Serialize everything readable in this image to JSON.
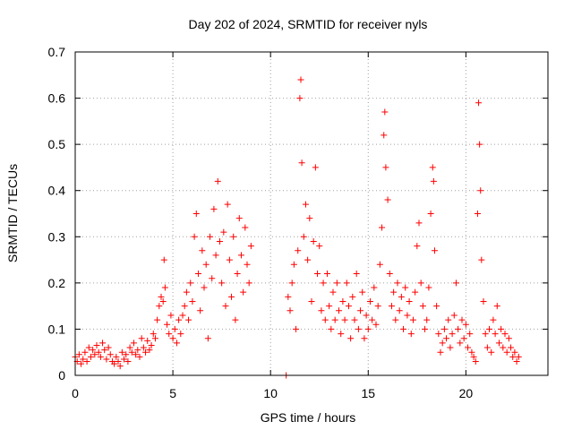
{
  "chart_data": {
    "type": "scatter",
    "title": "Day 202 of 2024, SRMTID for receiver nyls",
    "xlabel": "GPS time / hours",
    "ylabel": "SRMTID / TECUs",
    "xlim": [
      0,
      24.2
    ],
    "ylim": [
      0,
      0.7
    ],
    "xticks": [
      0,
      5,
      10,
      15,
      20
    ],
    "xtick_labels": [
      "0",
      "5",
      "10",
      "15",
      "20"
    ],
    "yticks": [
      0,
      0.1,
      0.2,
      0.3,
      0.4,
      0.5,
      0.6,
      0.7
    ],
    "ytick_labels": [
      "0",
      "0.1",
      "0.2",
      "0.3",
      "0.4",
      "0.5",
      "0.6",
      "0.7"
    ],
    "grid": true,
    "marker": "plus",
    "color": "#ff0000",
    "series": [
      {
        "name": "SRMTID",
        "points": [
          [
            0.0,
            0.04
          ],
          [
            0.1,
            0.03
          ],
          [
            0.2,
            0.045
          ],
          [
            0.3,
            0.025
          ],
          [
            0.4,
            0.035
          ],
          [
            0.5,
            0.05
          ],
          [
            0.6,
            0.03
          ],
          [
            0.7,
            0.06
          ],
          [
            0.8,
            0.04
          ],
          [
            0.9,
            0.055
          ],
          [
            1.0,
            0.045
          ],
          [
            1.1,
            0.065
          ],
          [
            1.2,
            0.05
          ],
          [
            1.3,
            0.04
          ],
          [
            1.4,
            0.07
          ],
          [
            1.5,
            0.055
          ],
          [
            1.6,
            0.035
          ],
          [
            1.7,
            0.06
          ],
          [
            1.8,
            0.045
          ],
          [
            1.9,
            0.03
          ],
          [
            2.0,
            0.025
          ],
          [
            2.1,
            0.04
          ],
          [
            2.2,
            0.03
          ],
          [
            2.3,
            0.02
          ],
          [
            2.4,
            0.05
          ],
          [
            2.5,
            0.035
          ],
          [
            2.6,
            0.045
          ],
          [
            2.7,
            0.03
          ],
          [
            2.8,
            0.06
          ],
          [
            2.9,
            0.05
          ],
          [
            3.0,
            0.07
          ],
          [
            3.1,
            0.045
          ],
          [
            3.2,
            0.055
          ],
          [
            3.3,
            0.04
          ],
          [
            3.4,
            0.08
          ],
          [
            3.5,
            0.06
          ],
          [
            3.6,
            0.05
          ],
          [
            3.7,
            0.075
          ],
          [
            3.8,
            0.055
          ],
          [
            3.9,
            0.065
          ],
          [
            4.0,
            0.09
          ],
          [
            4.1,
            0.08
          ],
          [
            4.2,
            0.12
          ],
          [
            4.3,
            0.15
          ],
          [
            4.4,
            0.17
          ],
          [
            4.5,
            0.16
          ],
          [
            4.55,
            0.25
          ],
          [
            4.6,
            0.19
          ],
          [
            4.7,
            0.11
          ],
          [
            4.8,
            0.09
          ],
          [
            4.9,
            0.13
          ],
          [
            5.0,
            0.08
          ],
          [
            5.1,
            0.1
          ],
          [
            5.2,
            0.07
          ],
          [
            5.3,
            0.12
          ],
          [
            5.4,
            0.09
          ],
          [
            5.5,
            0.13
          ],
          [
            5.6,
            0.15
          ],
          [
            5.7,
            0.18
          ],
          [
            5.8,
            0.12
          ],
          [
            5.9,
            0.2
          ],
          [
            6.0,
            0.16
          ],
          [
            6.1,
            0.3
          ],
          [
            6.2,
            0.35
          ],
          [
            6.3,
            0.22
          ],
          [
            6.4,
            0.14
          ],
          [
            6.5,
            0.27
          ],
          [
            6.6,
            0.19
          ],
          [
            6.7,
            0.24
          ],
          [
            6.8,
            0.08
          ],
          [
            6.9,
            0.3
          ],
          [
            7.0,
            0.21
          ],
          [
            7.1,
            0.36
          ],
          [
            7.2,
            0.26
          ],
          [
            7.3,
            0.42
          ],
          [
            7.4,
            0.29
          ],
          [
            7.5,
            0.2
          ],
          [
            7.6,
            0.31
          ],
          [
            7.7,
            0.15
          ],
          [
            7.8,
            0.37
          ],
          [
            7.9,
            0.25
          ],
          [
            8.0,
            0.17
          ],
          [
            8.1,
            0.3
          ],
          [
            8.2,
            0.12
          ],
          [
            8.3,
            0.22
          ],
          [
            8.4,
            0.34
          ],
          [
            8.5,
            0.26
          ],
          [
            8.6,
            0.18
          ],
          [
            8.7,
            0.32
          ],
          [
            8.8,
            0.24
          ],
          [
            8.9,
            0.2
          ],
          [
            9.0,
            0.28
          ],
          [
            10.8,
            0.0
          ],
          [
            10.9,
            0.17
          ],
          [
            11.0,
            0.14
          ],
          [
            11.1,
            0.2
          ],
          [
            11.2,
            0.24
          ],
          [
            11.3,
            0.1
          ],
          [
            11.4,
            0.27
          ],
          [
            11.5,
            0.6
          ],
          [
            11.55,
            0.64
          ],
          [
            11.6,
            0.46
          ],
          [
            11.7,
            0.3
          ],
          [
            11.8,
            0.37
          ],
          [
            11.9,
            0.25
          ],
          [
            12.0,
            0.34
          ],
          [
            12.1,
            0.16
          ],
          [
            12.2,
            0.29
          ],
          [
            12.3,
            0.45
          ],
          [
            12.4,
            0.22
          ],
          [
            12.5,
            0.28
          ],
          [
            12.6,
            0.14
          ],
          [
            12.7,
            0.2
          ],
          [
            12.8,
            0.12
          ],
          [
            12.9,
            0.22
          ],
          [
            13.0,
            0.15
          ],
          [
            13.1,
            0.1
          ],
          [
            13.2,
            0.18
          ],
          [
            13.3,
            0.12
          ],
          [
            13.4,
            0.2
          ],
          [
            13.5,
            0.14
          ],
          [
            13.6,
            0.09
          ],
          [
            13.7,
            0.16
          ],
          [
            13.8,
            0.12
          ],
          [
            13.9,
            0.2
          ],
          [
            14.0,
            0.15
          ],
          [
            14.1,
            0.08
          ],
          [
            14.2,
            0.17
          ],
          [
            14.3,
            0.12
          ],
          [
            14.4,
            0.22
          ],
          [
            14.5,
            0.1
          ],
          [
            14.6,
            0.14
          ],
          [
            14.7,
            0.18
          ],
          [
            14.8,
            0.08
          ],
          [
            14.9,
            0.13
          ],
          [
            15.0,
            0.1
          ],
          [
            15.1,
            0.16
          ],
          [
            15.2,
            0.12
          ],
          [
            15.3,
            0.19
          ],
          [
            15.4,
            0.11
          ],
          [
            15.5,
            0.15
          ],
          [
            15.6,
            0.24
          ],
          [
            15.7,
            0.32
          ],
          [
            15.8,
            0.52
          ],
          [
            15.85,
            0.57
          ],
          [
            15.9,
            0.45
          ],
          [
            16.0,
            0.38
          ],
          [
            16.1,
            0.22
          ],
          [
            16.2,
            0.15
          ],
          [
            16.3,
            0.18
          ],
          [
            16.4,
            0.12
          ],
          [
            16.5,
            0.2
          ],
          [
            16.6,
            0.14
          ],
          [
            16.7,
            0.17
          ],
          [
            16.8,
            0.1
          ],
          [
            16.9,
            0.19
          ],
          [
            17.0,
            0.13
          ],
          [
            17.1,
            0.16
          ],
          [
            17.2,
            0.09
          ],
          [
            17.3,
            0.12
          ],
          [
            17.4,
            0.18
          ],
          [
            17.5,
            0.28
          ],
          [
            17.6,
            0.33
          ],
          [
            17.7,
            0.2
          ],
          [
            17.8,
            0.15
          ],
          [
            17.9,
            0.1
          ],
          [
            18.0,
            0.12
          ],
          [
            18.1,
            0.19
          ],
          [
            18.2,
            0.35
          ],
          [
            18.3,
            0.45
          ],
          [
            18.35,
            0.42
          ],
          [
            18.4,
            0.27
          ],
          [
            18.5,
            0.15
          ],
          [
            18.6,
            0.09
          ],
          [
            18.7,
            0.05
          ],
          [
            18.8,
            0.07
          ],
          [
            18.9,
            0.1
          ],
          [
            19.0,
            0.08
          ],
          [
            19.1,
            0.12
          ],
          [
            19.2,
            0.06
          ],
          [
            19.3,
            0.09
          ],
          [
            19.4,
            0.13
          ],
          [
            19.5,
            0.2
          ],
          [
            19.6,
            0.1
          ],
          [
            19.7,
            0.07
          ],
          [
            19.8,
            0.12
          ],
          [
            19.9,
            0.08
          ],
          [
            20.0,
            0.11
          ],
          [
            20.1,
            0.06
          ],
          [
            20.2,
            0.09
          ],
          [
            20.3,
            0.05
          ],
          [
            20.4,
            0.04
          ],
          [
            20.5,
            0.03
          ],
          [
            20.6,
            0.35
          ],
          [
            20.65,
            0.59
          ],
          [
            20.7,
            0.5
          ],
          [
            20.75,
            0.4
          ],
          [
            20.8,
            0.25
          ],
          [
            20.9,
            0.16
          ],
          [
            21.0,
            0.09
          ],
          [
            21.1,
            0.06
          ],
          [
            21.2,
            0.1
          ],
          [
            21.3,
            0.05
          ],
          [
            21.4,
            0.12
          ],
          [
            21.5,
            0.09
          ],
          [
            21.6,
            0.15
          ],
          [
            21.7,
            0.07
          ],
          [
            21.8,
            0.1
          ],
          [
            21.9,
            0.06
          ],
          [
            22.0,
            0.09
          ],
          [
            22.1,
            0.05
          ],
          [
            22.2,
            0.08
          ],
          [
            22.3,
            0.06
          ],
          [
            22.4,
            0.04
          ],
          [
            22.5,
            0.05
          ],
          [
            22.6,
            0.03
          ],
          [
            22.7,
            0.04
          ]
        ]
      }
    ]
  }
}
